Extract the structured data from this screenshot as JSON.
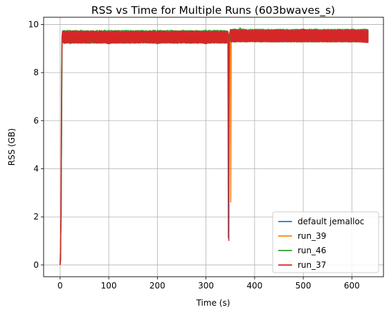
{
  "chart_data": {
    "type": "line",
    "title": "RSS vs Time for Multiple Runs (603bwaves_s)",
    "xlabel": "Time (s)",
    "ylabel": "RSS (GB)",
    "xlim": [
      -34,
      665
    ],
    "ylim": [
      -0.49,
      10.3
    ],
    "xticks": [
      0,
      100,
      200,
      300,
      400,
      500,
      600
    ],
    "yticks": [
      0,
      2,
      4,
      6,
      8,
      10
    ],
    "grid": true,
    "legend_position": "lower-right",
    "series": [
      {
        "name": "default jemalloc",
        "color": "#1f77b4",
        "x": [
          0,
          2,
          4,
          5,
          10,
          15,
          20,
          100,
          200,
          300,
          345,
          346,
          347,
          348,
          349,
          350,
          352,
          355,
          360,
          400,
          500,
          600,
          634
        ],
        "y": [
          0,
          2.0,
          9.5,
          9.75,
          9.2,
          9.75,
          9.2,
          9.7,
          9.2,
          9.7,
          9.3,
          1.1,
          9.6,
          9.3,
          9.7,
          9.3,
          9.8,
          9.3,
          9.8,
          9.3,
          9.8,
          9.3,
          9.3
        ],
        "band": [
          9.2,
          9.75
        ]
      },
      {
        "name": "run_39",
        "color": "#ff7f0e",
        "x": [
          0,
          2,
          4,
          5,
          10,
          15,
          100,
          200,
          300,
          345,
          350,
          351,
          352,
          353,
          355,
          360,
          400,
          500,
          600,
          634
        ],
        "y": [
          0,
          2.0,
          9.5,
          9.7,
          9.2,
          9.7,
          9.2,
          9.7,
          9.2,
          9.7,
          9.3,
          2.6,
          9.7,
          9.3,
          9.8,
          9.3,
          9.8,
          9.3,
          9.8,
          9.3
        ],
        "band": [
          9.2,
          9.75
        ]
      },
      {
        "name": "run_46",
        "color": "#2ca02c",
        "x": [
          0,
          2,
          4,
          5,
          10,
          15,
          100,
          200,
          300,
          345,
          350,
          352,
          355,
          360,
          365,
          370,
          400,
          500,
          600,
          634
        ],
        "y": [
          0,
          2.0,
          9.5,
          9.7,
          9.2,
          9.7,
          9.2,
          9.7,
          9.2,
          9.7,
          9.3,
          9.8,
          9.3,
          9.8,
          9.4,
          9.85,
          9.3,
          9.8,
          9.3,
          9.3
        ],
        "band": [
          9.2,
          9.78
        ]
      },
      {
        "name": "run_37",
        "color": "#d62728",
        "x": [
          0,
          1,
          2,
          3,
          4,
          5,
          10,
          15,
          100,
          200,
          300,
          345,
          346,
          347,
          348,
          349,
          350,
          355,
          360,
          400,
          500,
          600,
          634
        ],
        "y": [
          0,
          0.2,
          4.0,
          8.0,
          9.5,
          9.7,
          9.2,
          9.7,
          9.2,
          9.7,
          9.2,
          9.7,
          9.3,
          1.0,
          9.6,
          9.3,
          9.8,
          9.3,
          9.8,
          9.3,
          9.8,
          9.3,
          9.25
        ],
        "band": [
          9.2,
          9.75
        ]
      }
    ]
  }
}
